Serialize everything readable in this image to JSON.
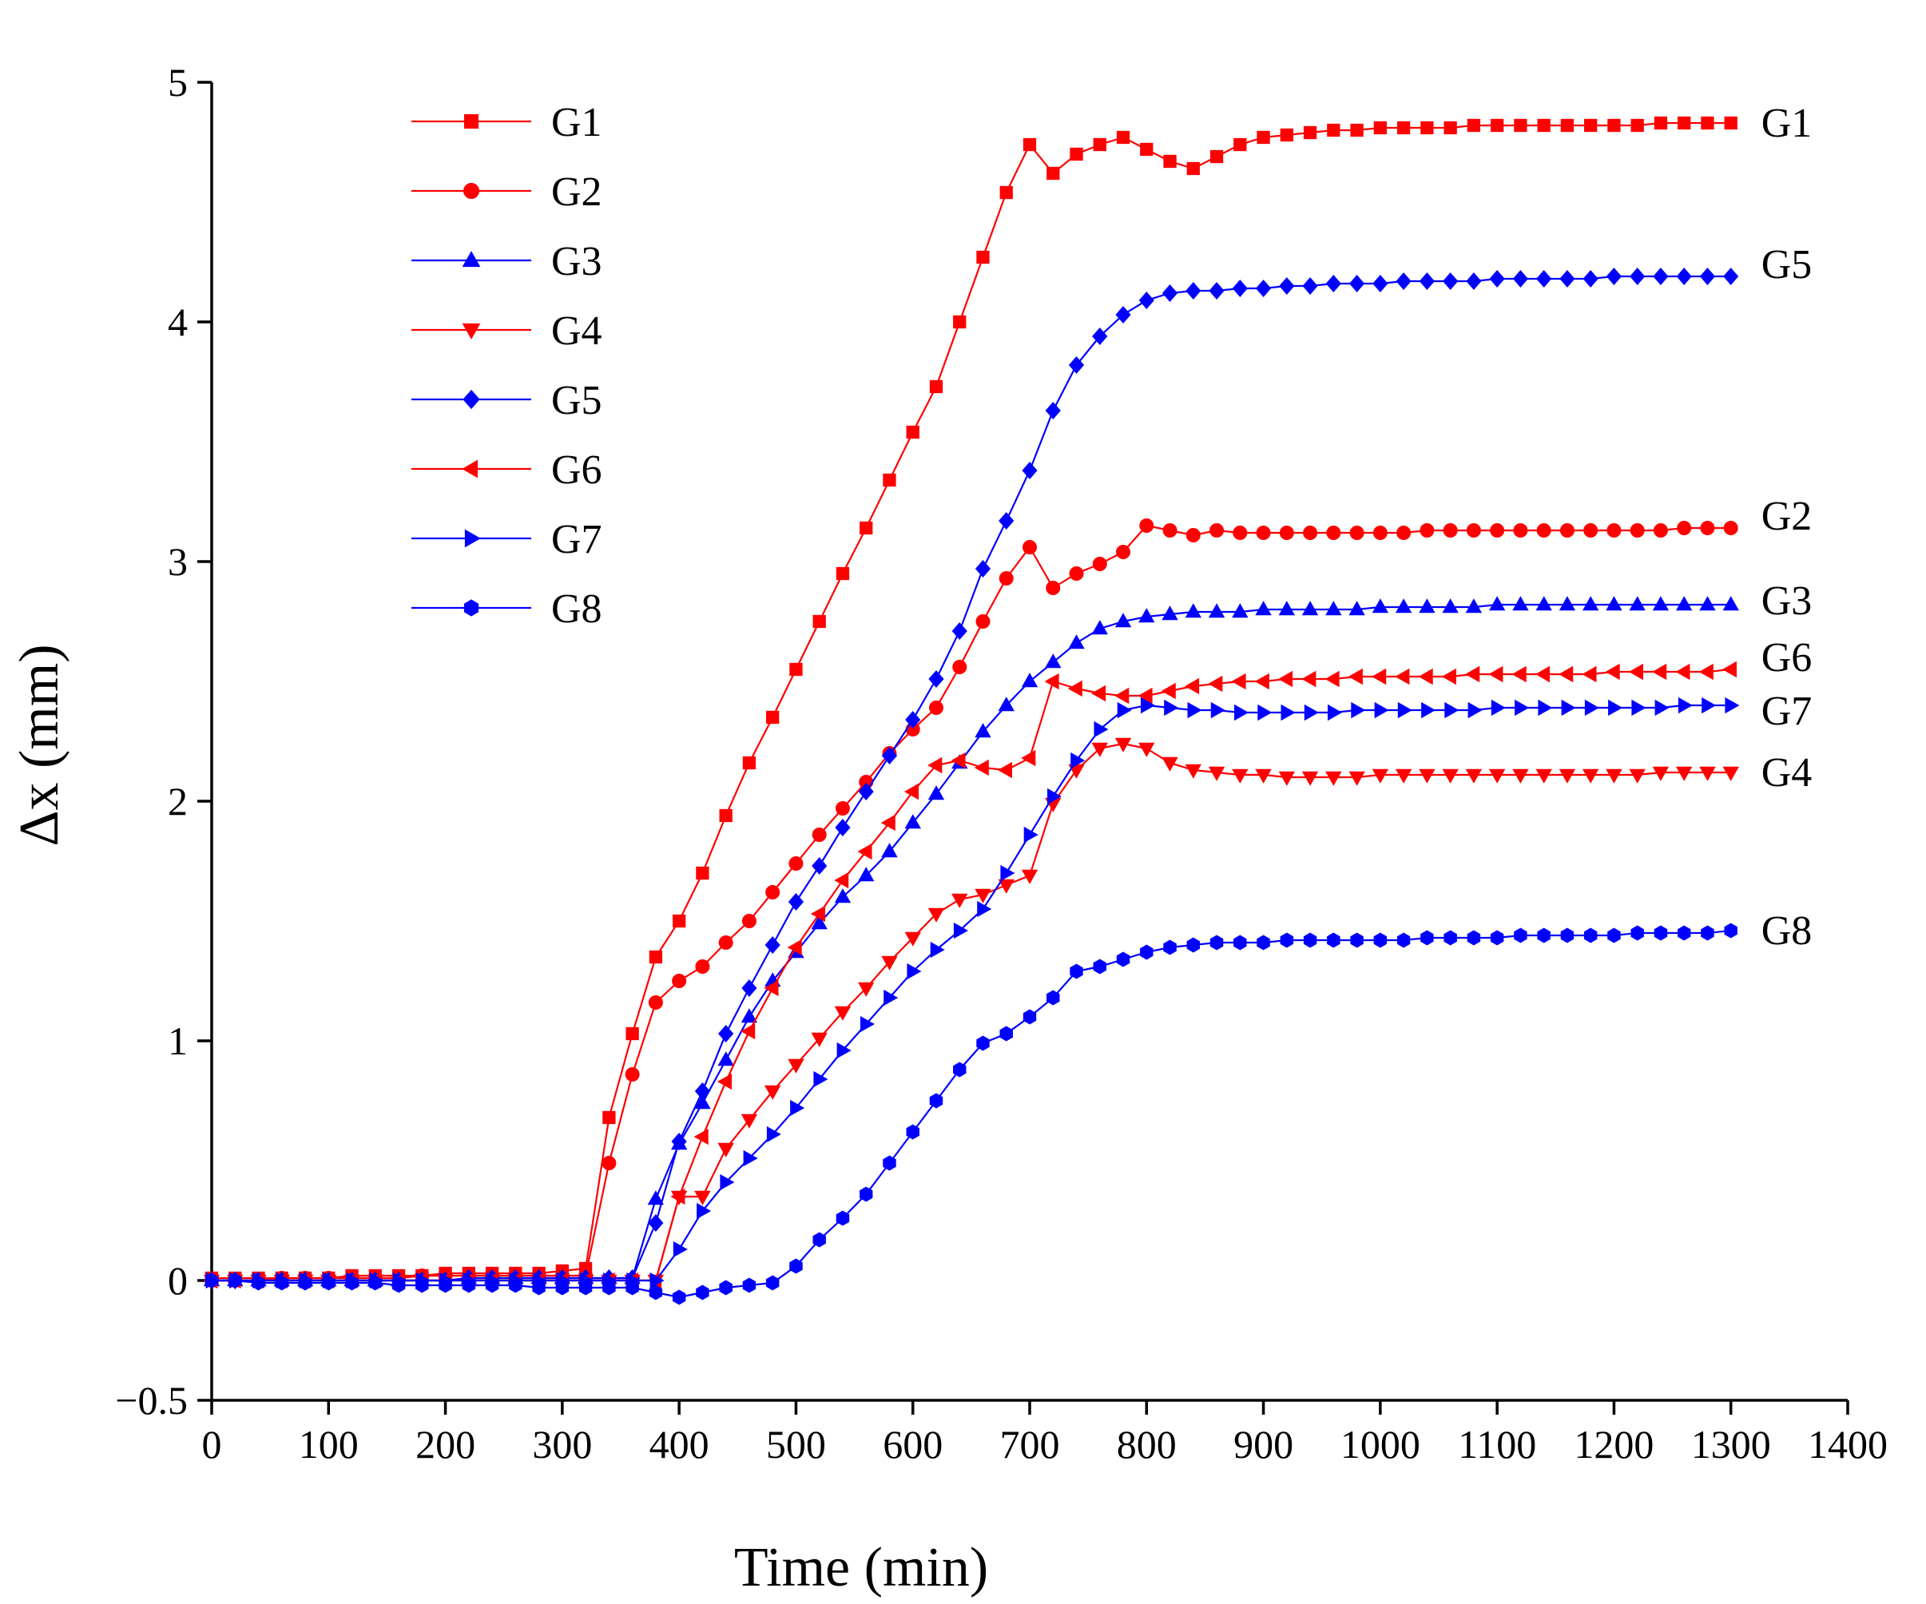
{
  "chart_data": {
    "type": "line",
    "xlabel": "Time (min)",
    "ylabel": "Δx (mm)",
    "xlim": [
      0,
      1400
    ],
    "ylim": [
      -0.5,
      5
    ],
    "xticks": [
      "0",
      "100",
      "200",
      "300",
      "400",
      "500",
      "600",
      "700",
      "800",
      "900",
      "1000",
      "1100",
      "1200",
      "1300",
      "1400"
    ],
    "yticks": [
      "−0.5",
      "0",
      "1",
      "2",
      "3",
      "4",
      "5"
    ],
    "x": [
      0,
      20,
      40,
      60,
      80,
      100,
      120,
      140,
      160,
      180,
      200,
      220,
      240,
      260,
      280,
      300,
      320,
      340,
      360,
      380,
      400,
      420,
      440,
      460,
      480,
      500,
      520,
      540,
      560,
      580,
      600,
      620,
      640,
      660,
      680,
      700,
      720,
      740,
      760,
      780,
      800,
      820,
      840,
      860,
      880,
      900,
      920,
      940,
      960,
      980,
      1000,
      1020,
      1040,
      1060,
      1080,
      1100,
      1120,
      1140,
      1160,
      1180,
      1200,
      1220,
      1240,
      1260,
      1280,
      1300
    ],
    "series": [
      {
        "name": "G1",
        "color": "#ff0000",
        "marker": "square",
        "end_label": "G1",
        "values": [
          0.01,
          0.01,
          0.01,
          0.01,
          0.01,
          0.01,
          0.02,
          0.02,
          0.02,
          0.02,
          0.03,
          0.03,
          0.03,
          0.03,
          0.03,
          0.04,
          0.05,
          0.68,
          1.03,
          1.35,
          1.5,
          1.7,
          1.94,
          2.16,
          2.35,
          2.55,
          2.75,
          2.95,
          3.14,
          3.34,
          3.54,
          3.73,
          4.0,
          4.27,
          4.54,
          4.74,
          4.62,
          4.7,
          4.74,
          4.77,
          4.72,
          4.67,
          4.64,
          4.69,
          4.74,
          4.77,
          4.78,
          4.79,
          4.8,
          4.8,
          4.81,
          4.81,
          4.81,
          4.81,
          4.82,
          4.82,
          4.82,
          4.82,
          4.82,
          4.82,
          4.82,
          4.82,
          4.83,
          4.83,
          4.83,
          4.83
        ]
      },
      {
        "name": "G2",
        "color": "#ff0000",
        "marker": "circle",
        "end_label": "G2",
        "values": [
          0.0,
          0.0,
          0.0,
          0.01,
          0.01,
          0.01,
          0.01,
          0.01,
          0.01,
          0.02,
          0.02,
          0.02,
          0.02,
          0.02,
          0.02,
          0.02,
          0.02,
          0.49,
          0.86,
          1.16,
          1.25,
          1.31,
          1.41,
          1.5,
          1.62,
          1.74,
          1.86,
          1.97,
          2.08,
          2.2,
          2.3,
          2.39,
          2.56,
          2.75,
          2.93,
          3.06,
          2.89,
          2.95,
          2.99,
          3.04,
          3.15,
          3.13,
          3.11,
          3.13,
          3.12,
          3.12,
          3.12,
          3.12,
          3.12,
          3.12,
          3.12,
          3.12,
          3.13,
          3.13,
          3.13,
          3.13,
          3.13,
          3.13,
          3.13,
          3.13,
          3.13,
          3.13,
          3.13,
          3.14,
          3.14,
          3.14
        ]
      },
      {
        "name": "G3",
        "color": "#0000ff",
        "marker": "triangle-up",
        "end_label": "G3",
        "values": [
          0.0,
          0.0,
          0.0,
          0.0,
          0.0,
          0.0,
          0.0,
          0.0,
          0.0,
          0.0,
          0.0,
          0.01,
          0.01,
          0.01,
          0.01,
          0.01,
          0.01,
          0.01,
          0.01,
          0.34,
          0.57,
          0.74,
          0.92,
          1.1,
          1.25,
          1.37,
          1.49,
          1.6,
          1.69,
          1.79,
          1.91,
          2.03,
          2.16,
          2.29,
          2.4,
          2.5,
          2.58,
          2.66,
          2.72,
          2.75,
          2.77,
          2.78,
          2.79,
          2.79,
          2.79,
          2.8,
          2.8,
          2.8,
          2.8,
          2.8,
          2.81,
          2.81,
          2.81,
          2.81,
          2.81,
          2.82,
          2.82,
          2.82,
          2.82,
          2.82,
          2.82,
          2.82,
          2.82,
          2.82,
          2.82,
          2.82
        ]
      },
      {
        "name": "G4",
        "color": "#ff0000",
        "marker": "triangle-down",
        "end_label": "G4",
        "values": [
          0.0,
          0.0,
          0.0,
          0.0,
          0.0,
          0.0,
          0.0,
          0.0,
          0.0,
          0.0,
          0.0,
          0.0,
          0.0,
          0.0,
          0.0,
          0.0,
          0.0,
          0.0,
          0.0,
          0.0,
          0.35,
          0.35,
          0.55,
          0.67,
          0.79,
          0.9,
          1.01,
          1.12,
          1.22,
          1.33,
          1.43,
          1.53,
          1.59,
          1.61,
          1.65,
          1.69,
          1.99,
          2.13,
          2.22,
          2.24,
          2.22,
          2.16,
          2.13,
          2.12,
          2.11,
          2.11,
          2.1,
          2.1,
          2.1,
          2.1,
          2.11,
          2.11,
          2.11,
          2.11,
          2.11,
          2.11,
          2.11,
          2.11,
          2.11,
          2.11,
          2.11,
          2.11,
          2.12,
          2.12,
          2.12,
          2.12
        ]
      },
      {
        "name": "G5",
        "color": "#0000ff",
        "marker": "diamond",
        "end_label": "G5",
        "values": [
          0.0,
          0.0,
          0.0,
          0.0,
          0.0,
          0.0,
          0.0,
          0.0,
          0.0,
          0.0,
          0.0,
          0.01,
          0.01,
          0.01,
          0.01,
          0.01,
          0.01,
          0.01,
          0.01,
          0.24,
          0.58,
          0.79,
          1.03,
          1.22,
          1.4,
          1.58,
          1.73,
          1.89,
          2.04,
          2.19,
          2.34,
          2.51,
          2.71,
          2.97,
          3.17,
          3.38,
          3.63,
          3.82,
          3.94,
          4.03,
          4.09,
          4.12,
          4.13,
          4.13,
          4.14,
          4.14,
          4.15,
          4.15,
          4.16,
          4.16,
          4.16,
          4.17,
          4.17,
          4.17,
          4.17,
          4.18,
          4.18,
          4.18,
          4.18,
          4.18,
          4.19,
          4.19,
          4.19,
          4.19,
          4.19,
          4.19
        ]
      },
      {
        "name": "G6",
        "color": "#ff0000",
        "marker": "triangle-left",
        "end_label": "G6",
        "values": [
          0.0,
          0.0,
          0.0,
          0.0,
          0.0,
          0.0,
          0.0,
          0.0,
          0.0,
          0.0,
          0.0,
          0.0,
          0.0,
          0.0,
          0.0,
          0.0,
          0.0,
          0.0,
          0.0,
          0.0,
          0.35,
          0.6,
          0.83,
          1.04,
          1.22,
          1.39,
          1.53,
          1.67,
          1.79,
          1.91,
          2.04,
          2.15,
          2.17,
          2.14,
          2.13,
          2.18,
          2.5,
          2.47,
          2.45,
          2.44,
          2.44,
          2.46,
          2.48,
          2.49,
          2.5,
          2.5,
          2.51,
          2.51,
          2.51,
          2.52,
          2.52,
          2.52,
          2.52,
          2.52,
          2.53,
          2.53,
          2.53,
          2.53,
          2.53,
          2.53,
          2.54,
          2.54,
          2.54,
          2.54,
          2.54,
          2.55
        ]
      },
      {
        "name": "G7",
        "color": "#0000ff",
        "marker": "triangle-right",
        "end_label": "G7",
        "values": [
          0.0,
          0.0,
          0.0,
          0.0,
          0.0,
          0.0,
          0.0,
          0.0,
          0.0,
          0.0,
          0.0,
          0.0,
          0.0,
          0.0,
          0.0,
          0.0,
          0.0,
          0.0,
          0.0,
          0.0,
          0.13,
          0.29,
          0.41,
          0.51,
          0.61,
          0.72,
          0.84,
          0.96,
          1.07,
          1.18,
          1.29,
          1.38,
          1.46,
          1.55,
          1.7,
          1.86,
          2.02,
          2.17,
          2.3,
          2.38,
          2.4,
          2.39,
          2.38,
          2.38,
          2.37,
          2.37,
          2.37,
          2.37,
          2.37,
          2.38,
          2.38,
          2.38,
          2.38,
          2.38,
          2.38,
          2.39,
          2.39,
          2.39,
          2.39,
          2.39,
          2.39,
          2.39,
          2.39,
          2.4,
          2.4,
          2.4
        ]
      },
      {
        "name": "G8",
        "color": "#0000ff",
        "marker": "hexagon",
        "end_label": "G8",
        "values": [
          0.0,
          0.0,
          -0.01,
          -0.01,
          -0.01,
          -0.01,
          -0.01,
          -0.01,
          -0.02,
          -0.02,
          -0.02,
          -0.02,
          -0.02,
          -0.02,
          -0.03,
          -0.03,
          -0.03,
          -0.03,
          -0.03,
          -0.05,
          -0.07,
          -0.05,
          -0.03,
          -0.02,
          -0.01,
          0.06,
          0.17,
          0.26,
          0.36,
          0.49,
          0.62,
          0.75,
          0.88,
          0.99,
          1.03,
          1.1,
          1.18,
          1.29,
          1.31,
          1.34,
          1.37,
          1.39,
          1.4,
          1.41,
          1.41,
          1.41,
          1.42,
          1.42,
          1.42,
          1.42,
          1.42,
          1.42,
          1.43,
          1.43,
          1.43,
          1.43,
          1.44,
          1.44,
          1.44,
          1.44,
          1.44,
          1.45,
          1.45,
          1.45,
          1.45,
          1.46
        ]
      }
    ]
  }
}
